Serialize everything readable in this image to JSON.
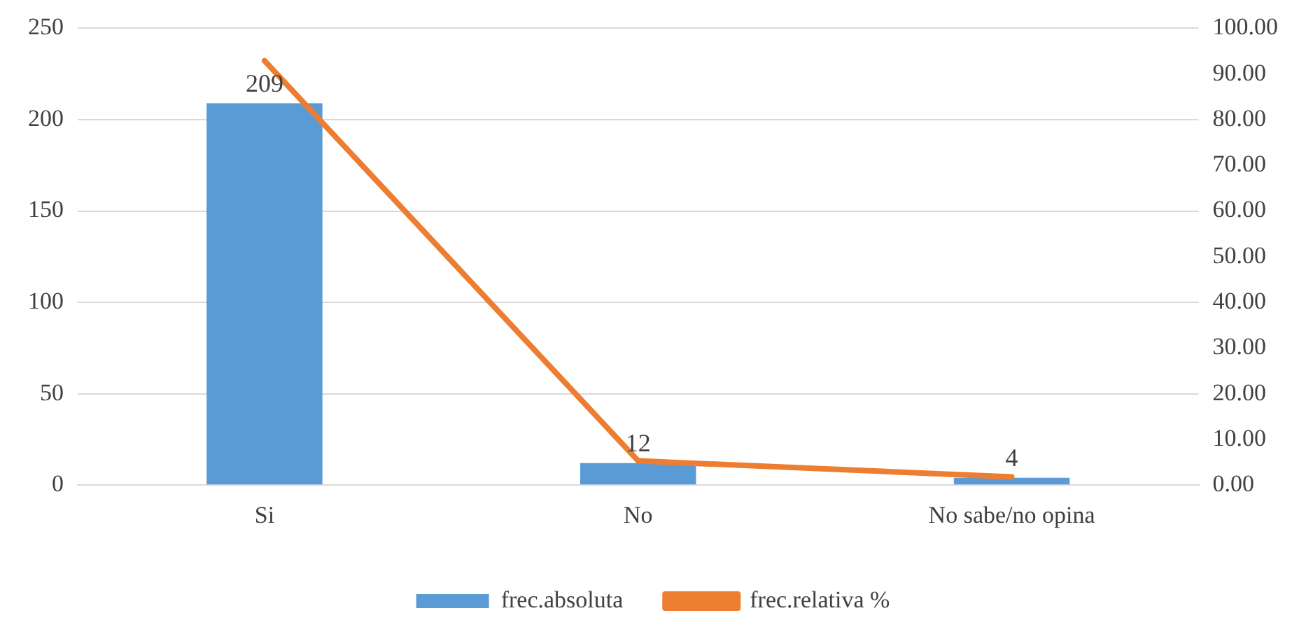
{
  "chart_data": {
    "type": "bar",
    "categories": [
      "Si",
      "No",
      "No sabe/no opina"
    ],
    "series": [
      {
        "name": "frec.absoluta",
        "color": "#5b9bd5",
        "values": [
          209,
          12,
          4
        ],
        "value_labels": [
          "209",
          "12",
          "4"
        ]
      },
      {
        "name": "frec.relativa %",
        "type": "line",
        "axis": "y2",
        "color": "#ed7d31",
        "values": [
          92.9,
          5.3,
          1.8
        ]
      }
    ],
    "ylim": [
      0,
      250
    ],
    "yticks": [
      0,
      50,
      100,
      150,
      200,
      250
    ],
    "y2lim": [
      0,
      100
    ],
    "y2ticks": [
      {
        "value": 0,
        "label": "0.00"
      },
      {
        "value": 10,
        "label": "10.00"
      },
      {
        "value": 20,
        "label": "20.00"
      },
      {
        "value": 30,
        "label": "30.00"
      },
      {
        "value": 40,
        "label": "40.00"
      },
      {
        "value": 50,
        "label": "50.00"
      },
      {
        "value": 60,
        "label": "60.00"
      },
      {
        "value": 70,
        "label": "70.00"
      },
      {
        "value": 80,
        "label": "80.00"
      },
      {
        "value": 90,
        "label": "90.00"
      },
      {
        "value": 100,
        "label": "100.00"
      }
    ],
    "grid": "y",
    "legend": "bottom",
    "marker": "none"
  }
}
